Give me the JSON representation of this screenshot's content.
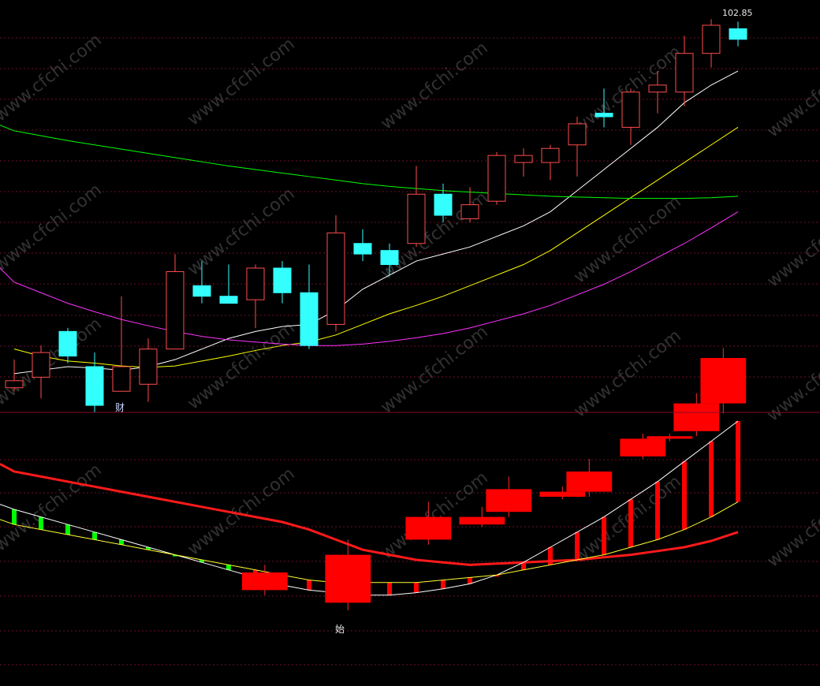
{
  "chart_data": [
    {
      "type": "candlestick",
      "panel": "price",
      "high_label": "102.85",
      "annotation": "财",
      "candles": [
        {
          "o": 50.5,
          "h": 54.5,
          "l": 50.0,
          "c": 51.5
        },
        {
          "o": 52.0,
          "h": 56.5,
          "l": 49.0,
          "c": 55.5
        },
        {
          "o": 58.5,
          "h": 59.0,
          "l": 54.0,
          "c": 55.0
        },
        {
          "o": 53.5,
          "h": 55.5,
          "l": 47.0,
          "c": 48.0
        },
        {
          "o": 50.0,
          "h": 63.5,
          "l": 50.0,
          "c": 53.5
        },
        {
          "o": 51.0,
          "h": 57.5,
          "l": 48.5,
          "c": 56.0
        },
        {
          "o": 56.0,
          "h": 69.5,
          "l": 56.0,
          "c": 67.0
        },
        {
          "o": 65.0,
          "h": 68.5,
          "l": 62.5,
          "c": 63.5
        },
        {
          "o": 63.5,
          "h": 68.0,
          "l": 62.5,
          "c": 62.5
        },
        {
          "o": 63.0,
          "h": 68.0,
          "l": 59.0,
          "c": 67.5
        },
        {
          "o": 67.5,
          "h": 68.5,
          "l": 62.5,
          "c": 64.0
        },
        {
          "o": 64.0,
          "h": 68.0,
          "l": 56.0,
          "c": 56.5
        },
        {
          "o": 59.5,
          "h": 75.0,
          "l": 58.5,
          "c": 72.5
        },
        {
          "o": 71.0,
          "h": 73.0,
          "l": 68.5,
          "c": 69.5
        },
        {
          "o": 70.0,
          "h": 71.0,
          "l": 66.5,
          "c": 68.0
        },
        {
          "o": 71.0,
          "h": 82.0,
          "l": 70.5,
          "c": 78.0
        },
        {
          "o": 78.0,
          "h": 79.5,
          "l": 74.0,
          "c": 75.0
        },
        {
          "o": 74.5,
          "h": 79.0,
          "l": 74.0,
          "c": 76.5
        },
        {
          "o": 77.0,
          "h": 84.0,
          "l": 76.5,
          "c": 83.5
        },
        {
          "o": 82.5,
          "h": 84.5,
          "l": 80.5,
          "c": 83.5
        },
        {
          "o": 82.5,
          "h": 85.0,
          "l": 80.0,
          "c": 84.5
        },
        {
          "o": 85.0,
          "h": 89.0,
          "l": 80.5,
          "c": 88.0
        },
        {
          "o": 89.5,
          "h": 93.0,
          "l": 87.5,
          "c": 89.0
        },
        {
          "o": 87.5,
          "h": 93.0,
          "l": 85.0,
          "c": 92.5
        },
        {
          "o": 92.5,
          "h": 95.5,
          "l": 89.5,
          "c": 93.5
        },
        {
          "o": 92.5,
          "h": 100.5,
          "l": 90.5,
          "c": 98.0
        },
        {
          "o": 98.0,
          "h": 102.85,
          "l": 96.0,
          "c": 102.0
        },
        {
          "o": 101.5,
          "h": 102.5,
          "l": 99.0,
          "c": 100.0
        }
      ],
      "ma_lines": [
        {
          "color": "#ffffff",
          "values": [
            52.5,
            53.0,
            53.5,
            53.3,
            53.0,
            53.5,
            54.5,
            56.0,
            57.5,
            58.5,
            59.2,
            59.5,
            61.5,
            64.5,
            66.5,
            68.5,
            69.5,
            70.5,
            72.0,
            73.5,
            75.5,
            78.5,
            81.5,
            84.5,
            87.5,
            91.0,
            93.5,
            95.5
          ]
        },
        {
          "color": "#ffff00",
          "values": [
            56.0,
            55.0,
            54.3,
            54.0,
            53.6,
            53.4,
            53.6,
            54.3,
            55.0,
            55.8,
            56.5,
            57.0,
            58.0,
            59.5,
            61.0,
            62.2,
            63.5,
            65.0,
            66.5,
            68.0,
            70.0,
            72.5,
            75.0,
            77.5,
            80.0,
            82.5,
            85.0,
            87.5
          ]
        },
        {
          "color": "#00ff00",
          "values": [
            87.0,
            86.3,
            85.6,
            85.0,
            84.4,
            83.8,
            83.2,
            82.6,
            82.0,
            81.5,
            81.0,
            80.5,
            80.0,
            79.5,
            79.1,
            78.8,
            78.5,
            78.3,
            78.1,
            77.9,
            77.7,
            77.6,
            77.5,
            77.4,
            77.4,
            77.4,
            77.5,
            77.7
          ]
        },
        {
          "color": "#ff33ff",
          "values": [
            65.5,
            64.0,
            62.5,
            61.3,
            60.2,
            59.3,
            58.5,
            57.8,
            57.3,
            57.0,
            56.7,
            56.5,
            56.5,
            56.7,
            57.1,
            57.6,
            58.2,
            59.0,
            60.0,
            61.0,
            62.2,
            63.7,
            65.2,
            67.0,
            69.0,
            71.0,
            73.2,
            75.5
          ]
        }
      ]
    },
    {
      "type": "bar",
      "panel": "indicator",
      "annotation": "始",
      "values": [
        64,
        62,
        60,
        58,
        56,
        54,
        52,
        50,
        48,
        46,
        44,
        42,
        41,
        41,
        42,
        44,
        46,
        48,
        51,
        55,
        60,
        65,
        70,
        75,
        80,
        86,
        92,
        98
      ],
      "positive_color": "#ff0000",
      "negative_color": "#00ff00",
      "red_line": [
        85,
        83,
        81,
        79,
        77,
        75,
        73,
        71,
        69,
        67,
        65,
        62,
        58,
        54,
        52,
        50,
        49,
        48,
        48.5,
        49,
        49.5,
        50,
        51,
        52,
        53.5,
        55,
        57.5,
        61
      ],
      "white_line": [
        70,
        67,
        64,
        61,
        58,
        55,
        52,
        49,
        46,
        43,
        40,
        38,
        37,
        36,
        36,
        37,
        38.5,
        40.5,
        44,
        49,
        55,
        61,
        67,
        74,
        81,
        89,
        97,
        105
      ],
      "yellow_line": [
        64,
        62,
        60,
        58,
        56,
        54,
        52,
        50,
        48,
        46,
        44,
        42,
        41,
        41,
        41,
        41,
        42,
        43,
        44,
        46,
        48,
        50,
        52,
        55,
        58,
        62,
        67,
        73
      ],
      "boxes": [
        {
          "start": 8.5,
          "end": 10.2,
          "bottom": 38,
          "top": 45,
          "wick_top": 48,
          "wick_bottom": 36
        },
        {
          "start": 11.6,
          "end": 13.3,
          "bottom": 33,
          "top": 52,
          "wick_top": 58,
          "wick_bottom": 30
        },
        {
          "start": 14.6,
          "end": 16.3,
          "bottom": 58,
          "top": 67,
          "wick_top": 73,
          "wick_bottom": 56
        },
        {
          "start": 16.6,
          "end": 18.3,
          "bottom": 64,
          "top": 67,
          "wick_top": 71,
          "wick_bottom": 63
        },
        {
          "start": 17.6,
          "end": 19.3,
          "bottom": 69,
          "top": 78,
          "wick_top": 83,
          "wick_bottom": 67
        },
        {
          "start": 19.6,
          "end": 21.3,
          "bottom": 75,
          "top": 77,
          "wick_top": 79,
          "wick_bottom": 74
        },
        {
          "start": 20.6,
          "end": 22.3,
          "bottom": 77,
          "top": 85,
          "wick_top": 90,
          "wick_bottom": 75
        },
        {
          "start": 22.6,
          "end": 24.3,
          "bottom": 91,
          "top": 98,
          "wick_top": 100,
          "wick_bottom": 90
        },
        {
          "start": 23.6,
          "end": 25.3,
          "bottom": 98,
          "top": 99,
          "wick_top": 100,
          "wick_bottom": 97
        },
        {
          "start": 24.6,
          "end": 26.3,
          "bottom": 101,
          "top": 112,
          "wick_top": 116,
          "wick_bottom": 99
        },
        {
          "start": 25.6,
          "end": 27.3,
          "bottom": 112,
          "top": 130,
          "wick_top": 134,
          "wick_bottom": 108
        }
      ]
    }
  ]
}
